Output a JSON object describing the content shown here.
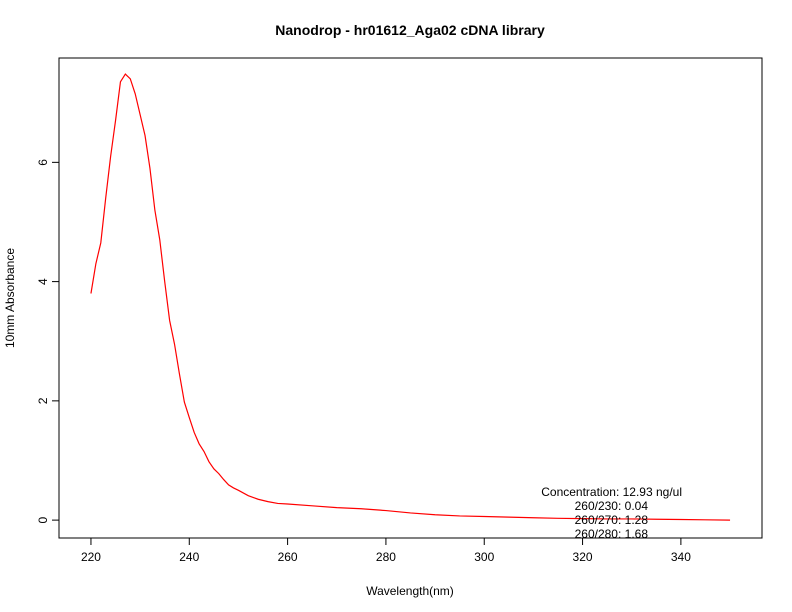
{
  "chart_data": {
    "type": "line",
    "title": "Nanodrop - hr01612_Aga02 cDNA library",
    "xlabel": "Wavelength(nm)",
    "ylabel": "10mm Absorbance",
    "xlim": [
      213.5,
      356.5
    ],
    "ylim": [
      -0.3,
      7.75
    ],
    "xticks": [
      220,
      240,
      260,
      280,
      300,
      320,
      340
    ],
    "yticks": [
      0,
      2,
      4,
      6
    ],
    "grid": false,
    "series": [
      {
        "color": "#ff0000",
        "x": [
          220,
          221,
          222,
          223,
          224,
          225,
          226,
          227,
          228,
          229,
          230,
          231,
          232,
          233,
          234,
          235,
          236,
          237,
          238,
          239,
          240,
          241,
          242,
          243,
          244,
          245,
          246,
          247,
          248,
          249,
          250,
          252,
          254,
          256,
          258,
          260,
          265,
          270,
          275,
          280,
          285,
          290,
          295,
          300,
          305,
          310,
          315,
          320,
          325,
          330,
          335,
          340,
          345,
          350
        ],
        "y": [
          3.8,
          4.3,
          4.65,
          5.4,
          6.1,
          6.7,
          7.35,
          7.48,
          7.4,
          7.15,
          6.8,
          6.45,
          5.9,
          5.2,
          4.7,
          4.0,
          3.35,
          2.95,
          2.45,
          1.98,
          1.72,
          1.47,
          1.28,
          1.15,
          0.98,
          0.86,
          0.78,
          0.68,
          0.59,
          0.54,
          0.5,
          0.41,
          0.35,
          0.31,
          0.28,
          0.27,
          0.24,
          0.21,
          0.19,
          0.16,
          0.12,
          0.09,
          0.07,
          0.06,
          0.05,
          0.04,
          0.03,
          0.025,
          0.02,
          0.02,
          0.015,
          0.01,
          0.005,
          0.0
        ]
      }
    ],
    "annotations": [
      "Concentration: 12.93 ng/ul",
      "260/230: 0.04",
      "260/270: 1.28",
      "260/280: 1.68"
    ]
  }
}
